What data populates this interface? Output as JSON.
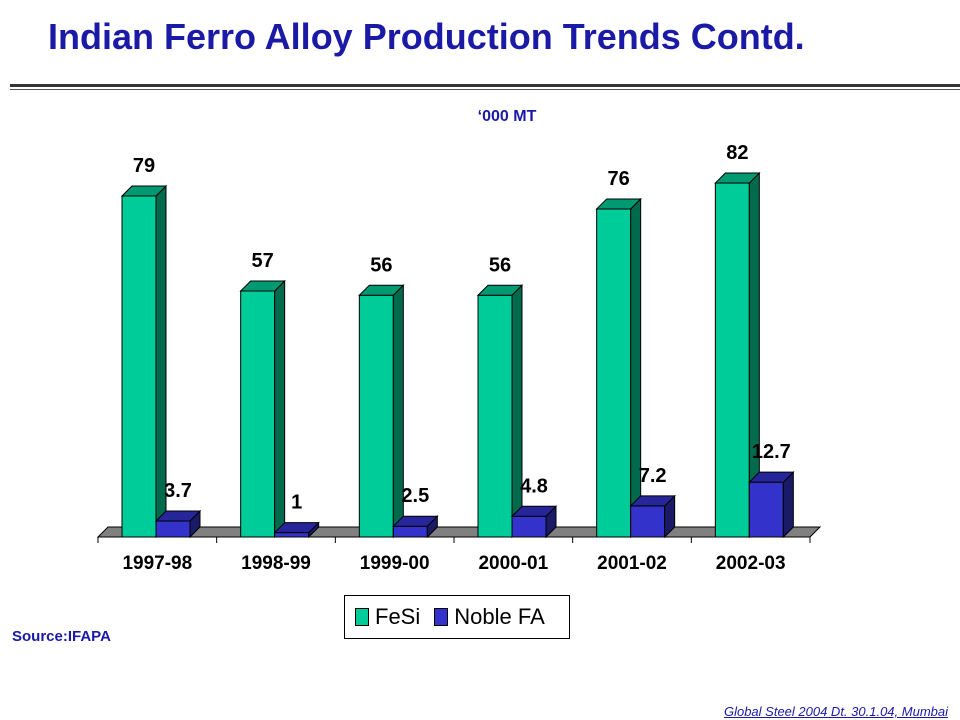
{
  "slide": {
    "title": "Indian Ferro Alloy Production Trends Contd.",
    "unit_label": "‘000 MT",
    "source": "Source:IFAPA",
    "footer": "Global Steel 2004 Dt. 30.1.04, Mumbai"
  },
  "chart_data": {
    "type": "bar",
    "title": "",
    "xlabel": "",
    "ylabel": "",
    "categories": [
      "1997-98",
      "1998-99",
      "1999-00",
      "2000-01",
      "2001-02",
      "2002-03"
    ],
    "series": [
      {
        "name": "FeSi",
        "values": [
          79,
          57,
          56,
          56,
          76,
          82
        ],
        "labels": [
          "79",
          "57",
          "56",
          "56",
          "76",
          "82"
        ],
        "color": "#00cc99",
        "side_color": "#006a4c",
        "top_color": "#009a72"
      },
      {
        "name": "Noble FA",
        "values": [
          3.7,
          1,
          2.5,
          4.8,
          7.2,
          12.7
        ],
        "labels": [
          "3.7",
          "1",
          "2.5",
          "4.8",
          "7.2",
          "12.7"
        ],
        "color": "#3333cc",
        "side_color": "#1a1a66",
        "top_color": "#26269a"
      }
    ],
    "ylim": [
      0,
      90
    ],
    "grid": false,
    "legend_position": "bottom-center"
  }
}
